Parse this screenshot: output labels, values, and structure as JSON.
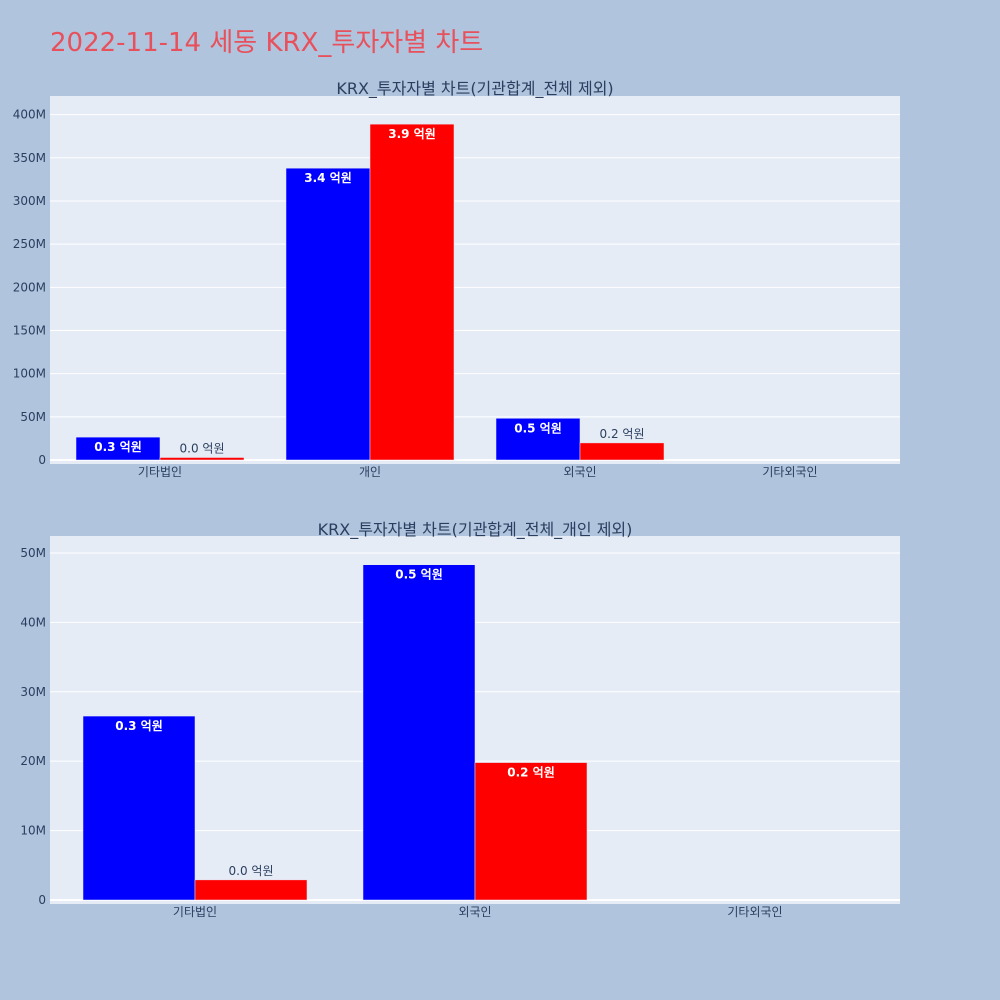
{
  "page_title": "2022-11-14 세동 KRX_투자자별 차트",
  "colors": {
    "background": "#b0c4de",
    "plot_bg": "#e5ecf6",
    "series_a": "#0000ff",
    "series_b": "#ff0000",
    "title_color": "#e8505b"
  },
  "chart_data": [
    {
      "type": "bar",
      "title": "KRX_투자자별 차트(기관합계_전체 제외)",
      "categories": [
        "기타법인",
        "개인",
        "외국인",
        "기타외국인"
      ],
      "ylim": [
        0,
        410000000
      ],
      "yticks": [
        0,
        50000000,
        100000000,
        150000000,
        200000000,
        250000000,
        300000000,
        350000000,
        400000000
      ],
      "ytick_labels": [
        "0",
        "50M",
        "100M",
        "150M",
        "200M",
        "250M",
        "300M",
        "350M",
        "400M"
      ],
      "grid": true,
      "series": [
        {
          "color": "#0000ff",
          "values": [
            26500000,
            338000000,
            48300000,
            0
          ],
          "labels": [
            "0.3 억원",
            "3.4 억원",
            "0.5 억원",
            ""
          ]
        },
        {
          "color": "#ff0000",
          "values": [
            2900000,
            389000000,
            19800000,
            0
          ],
          "labels": [
            "0.0 억원",
            "3.9 억원",
            "0.2 억원",
            ""
          ]
        }
      ]
    },
    {
      "type": "bar",
      "title": "KRX_투자자별 차트(기관합계_전체_개인 제외)",
      "categories": [
        "기타법인",
        "외국인",
        "기타외국인"
      ],
      "ylim": [
        0,
        51000000
      ],
      "yticks": [
        0,
        10000000,
        20000000,
        30000000,
        40000000,
        50000000
      ],
      "ytick_labels": [
        "0",
        "10M",
        "20M",
        "30M",
        "40M",
        "50M"
      ],
      "grid": true,
      "series": [
        {
          "color": "#0000ff",
          "values": [
            26500000,
            48300000,
            0
          ],
          "labels": [
            "0.3 억원",
            "0.5 억원",
            ""
          ]
        },
        {
          "color": "#ff0000",
          "values": [
            2900000,
            19800000,
            0
          ],
          "labels": [
            "0.0 억원",
            "0.2 억원",
            ""
          ]
        }
      ]
    }
  ]
}
